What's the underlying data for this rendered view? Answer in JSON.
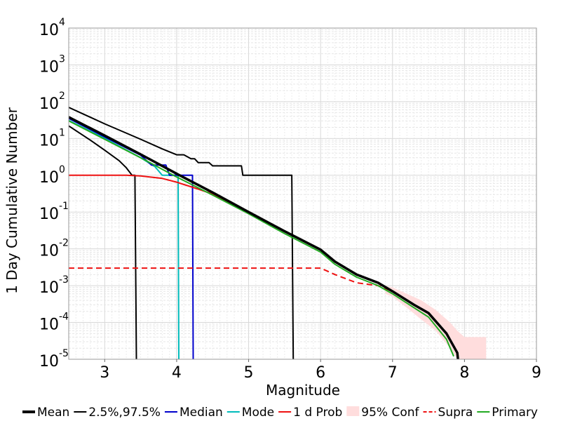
{
  "chart_data": {
    "type": "line",
    "xlabel": "Magnitude",
    "ylabel": "1 Day Cumulative Number",
    "xlim": [
      2.5,
      9
    ],
    "xticks": [
      "3",
      "4",
      "5",
      "6",
      "7",
      "8",
      "9"
    ],
    "ylim": [
      1e-05,
      10000
    ],
    "yscale": "log",
    "yticks": [
      {
        "base": "10",
        "exp": "-5"
      },
      {
        "base": "10",
        "exp": "-4"
      },
      {
        "base": "10",
        "exp": "-3"
      },
      {
        "base": "10",
        "exp": "-2"
      },
      {
        "base": "10",
        "exp": "-1"
      },
      {
        "base": "10",
        "exp": "0"
      },
      {
        "base": "10",
        "exp": "1"
      },
      {
        "base": "10",
        "exp": "2"
      },
      {
        "base": "10",
        "exp": "3"
      },
      {
        "base": "10",
        "exp": "4"
      }
    ],
    "grid": true,
    "legend_position": "bottom",
    "series": [
      {
        "name": "Mean",
        "color": "#000000",
        "style": "solid-thick",
        "x": [
          2.5,
          3.0,
          3.5,
          4.0,
          4.5,
          5.0,
          5.5,
          6.0,
          6.2,
          6.5,
          6.8,
          7.0,
          7.3,
          7.5,
          7.75,
          7.9,
          7.91
        ],
        "y": [
          38,
          12,
          3.7,
          1.1,
          0.34,
          0.1,
          0.03,
          0.0095,
          0.0045,
          0.002,
          0.0012,
          0.0007,
          0.0003,
          0.00018,
          5e-05,
          1.5e-05,
          1e-05
        ]
      },
      {
        "name": "2.5%,97.5%",
        "color": "#000000",
        "style": "solid",
        "lines": [
          {
            "x": [
              2.5,
              3.0,
              3.5,
              3.8,
              4.0,
              4.1,
              4.2,
              4.25,
              4.3,
              4.45,
              4.5,
              4.9,
              4.92,
              5.6,
              5.62
            ],
            "y": [
              70,
              25,
              9.5,
              5.2,
              3.6,
              3.6,
              2.8,
              2.8,
              2.2,
              2.2,
              1.8,
              1.8,
              1.0,
              1.0,
              1e-05
            ]
          },
          {
            "x": [
              2.5,
              2.8,
              3.0,
              3.2,
              3.3,
              3.38,
              3.42,
              3.44
            ],
            "y": [
              22,
              9,
              4.8,
              2.5,
              1.6,
              1.0,
              1.0,
              1e-05
            ]
          }
        ]
      },
      {
        "name": "Median",
        "color": "#0000cc",
        "style": "solid",
        "x": [
          2.5,
          3.0,
          3.5,
          3.65,
          3.85,
          3.9,
          4.1,
          4.2,
          4.22,
          4.23
        ],
        "y": [
          35,
          11,
          3.5,
          1.9,
          1.9,
          1.0,
          1.0,
          1.0,
          1.0,
          1e-05
        ]
      },
      {
        "name": "Mode",
        "color": "#00bbbb",
        "style": "solid",
        "x": [
          2.5,
          3.0,
          3.5,
          3.7,
          3.8,
          4.0,
          4.02,
          4.03
        ],
        "y": [
          31,
          10,
          3.0,
          1.7,
          1.0,
          1.0,
          1.0,
          1e-05
        ]
      },
      {
        "name": "1 d Prob",
        "color": "#ee1111",
        "style": "solid",
        "x": [
          2.5,
          3.0,
          3.3,
          3.5,
          3.8,
          4.0,
          4.3,
          4.5,
          5.0,
          5.5,
          6.0,
          6.2,
          6.5,
          6.8,
          7.0,
          7.3,
          7.5,
          7.75,
          7.9
        ],
        "y": [
          1.0,
          1.0,
          1.0,
          0.96,
          0.82,
          0.65,
          0.42,
          0.31,
          0.1,
          0.03,
          0.0095,
          0.0045,
          0.002,
          0.0012,
          0.0007,
          0.0003,
          0.00018,
          5e-05,
          1.5e-05
        ]
      },
      {
        "name": "95% Conf",
        "color": "#ffdddd",
        "style": "band",
        "x": [
          6.9,
          7.0,
          7.2,
          7.4,
          7.6,
          7.8,
          7.9,
          8.0,
          8.1,
          8.2,
          8.3
        ],
        "upper": [
          0.001,
          0.0009,
          0.0006,
          0.0004,
          0.00022,
          0.0001,
          6e-05,
          4e-05,
          4e-05,
          4e-05,
          4e-05
        ],
        "lower": [
          0.0006,
          0.0005,
          0.00025,
          0.00012,
          6e-05,
          2e-05,
          1e-05,
          1e-05,
          1e-05,
          1e-05,
          1e-05
        ]
      },
      {
        "name": "Supra",
        "color": "#ee1111",
        "style": "dashed",
        "x": [
          2.5,
          6.0,
          6.2,
          6.5,
          6.8,
          7.0,
          7.3,
          7.5,
          7.75,
          7.9
        ],
        "y": [
          0.003,
          0.003,
          0.002,
          0.0012,
          0.001,
          0.0007,
          0.0003,
          0.00018,
          5e-05,
          1.5e-05
        ]
      },
      {
        "name": "Primary",
        "color": "#22aa22",
        "style": "solid",
        "x": [
          2.5,
          3.0,
          3.5,
          4.0,
          4.5,
          5.0,
          5.5,
          6.0,
          6.2,
          6.5,
          6.8,
          7.0,
          7.3,
          7.5,
          7.75,
          7.85
        ],
        "y": [
          30,
          9.5,
          3.0,
          0.9,
          0.29,
          0.09,
          0.026,
          0.0082,
          0.0038,
          0.0017,
          0.001,
          0.0006,
          0.00025,
          0.00014,
          3.5e-05,
          1.2e-05
        ]
      }
    ]
  }
}
